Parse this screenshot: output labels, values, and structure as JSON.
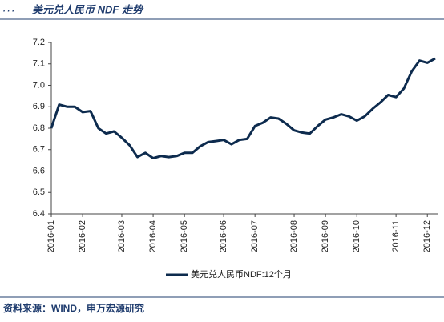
{
  "title": "美元兑人民币 NDF 走势",
  "source": "资料来源：WIND，申万宏源研究",
  "chart_data": {
    "type": "line",
    "categories": [
      "2016-01",
      null,
      null,
      null,
      "2016-02",
      null,
      null,
      null,
      null,
      "2016-03",
      null,
      null,
      null,
      "2016-04",
      null,
      null,
      null,
      "2016-05",
      null,
      null,
      null,
      null,
      "2016-06",
      null,
      null,
      null,
      "2016-07",
      null,
      null,
      null,
      null,
      "2016-08",
      null,
      null,
      null,
      "2016-09",
      null,
      null,
      null,
      "2016-10",
      null,
      null,
      null,
      null,
      "2016-11",
      null,
      null,
      null,
      "2016-12",
      null
    ],
    "series": [
      {
        "name": "美元兑人民币NDF:12个月",
        "color": "#0d2b4e",
        "values": [
          6.8,
          6.91,
          6.9,
          6.9,
          6.875,
          6.88,
          6.8,
          6.775,
          6.785,
          6.755,
          6.72,
          6.665,
          6.685,
          6.66,
          6.67,
          6.665,
          6.67,
          6.685,
          6.685,
          6.715,
          6.735,
          6.74,
          6.745,
          6.725,
          6.745,
          6.75,
          6.81,
          6.825,
          6.85,
          6.845,
          6.82,
          6.79,
          6.78,
          6.775,
          6.81,
          6.84,
          6.85,
          6.865,
          6.855,
          6.835,
          6.855,
          6.89,
          6.92,
          6.955,
          6.945,
          6.985,
          7.065,
          7.115,
          7.105,
          7.125
        ]
      }
    ],
    "ylim": [
      6.4,
      7.2
    ],
    "yticks": [
      6.4,
      6.5,
      6.6,
      6.7,
      6.8,
      6.9,
      {
        "value": 7,
        "label": "7.0"
      },
      7.1,
      7.2
    ]
  }
}
